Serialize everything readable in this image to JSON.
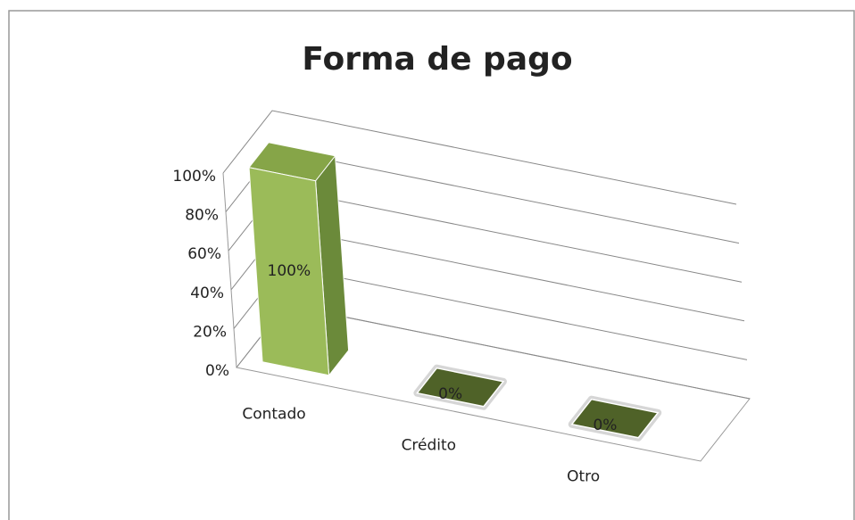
{
  "chart_data": {
    "type": "bar3d",
    "title": "Forma de pago",
    "categories": [
      "Contado",
      "Crédito",
      "Otro"
    ],
    "values": [
      100,
      0,
      0
    ],
    "value_labels": [
      "100%",
      "0%",
      "0%"
    ],
    "color": "#9bbb59",
    "ylim": [
      0,
      100
    ],
    "yticks": [
      {
        "value": 0,
        "label": "0%"
      },
      {
        "value": 20,
        "label": "20%"
      },
      {
        "value": 40,
        "label": "40%"
      },
      {
        "value": 60,
        "label": "60%"
      },
      {
        "value": 80,
        "label": "80%"
      },
      {
        "value": 100,
        "label": "100%"
      }
    ],
    "grid": true
  }
}
